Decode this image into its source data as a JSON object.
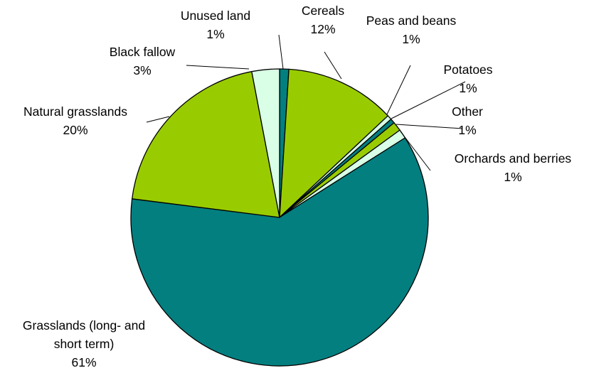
{
  "chart_data": {
    "type": "pie",
    "title": "",
    "start_angle_deg": 0,
    "direction": "clockwise",
    "slices": [
      {
        "label": "Unused land",
        "value": 1,
        "value_label": "1%",
        "color": "#037F80"
      },
      {
        "label": "Cereals",
        "value": 12,
        "value_label": "12%",
        "color": "#99CC00"
      },
      {
        "label": "Peas and beans",
        "value": 0.5,
        "value_label": "1%",
        "color": "#D9FFE6"
      },
      {
        "label": "Potatoes",
        "value": 0.5,
        "value_label": "1%",
        "color": "#037F80"
      },
      {
        "label": "Other",
        "value": 1,
        "value_label": "1%",
        "color": "#99CC00"
      },
      {
        "label": "Orchards and berries",
        "value": 1,
        "value_label": "1%",
        "color": "#D9FFE6"
      },
      {
        "label": "Grasslands (long- and short term)",
        "value": 61,
        "value_label": "61%",
        "color": "#037F80"
      },
      {
        "label": "Natural grasslands",
        "value": 20,
        "value_label": "20%",
        "color": "#99CC00"
      },
      {
        "label": "Black fallow",
        "value": 3,
        "value_label": "3%",
        "color": "#D9FFE6"
      }
    ]
  }
}
